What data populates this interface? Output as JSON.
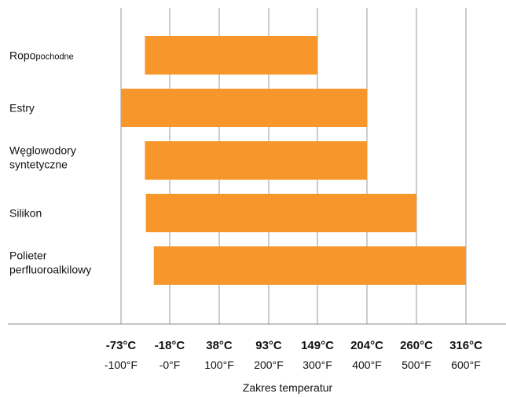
{
  "chart_data": {
    "type": "bar",
    "orientation": "horizontal",
    "xlabel": "Zakres temperatur",
    "bar_color": "#F7972B",
    "grid": true,
    "ticks": [
      {
        "value": -73,
        "celsius": "-73°C",
        "fahrenheit": "-100°F"
      },
      {
        "value": -18,
        "celsius": "-18°C",
        "fahrenheit": "-0°F"
      },
      {
        "value": 38,
        "celsius": "38°C",
        "fahrenheit": "100°F"
      },
      {
        "value": 93,
        "celsius": "93°C",
        "fahrenheit": "200°F"
      },
      {
        "value": 149,
        "celsius": "149°C",
        "fahrenheit": "300°F"
      },
      {
        "value": 204,
        "celsius": "204°C",
        "fahrenheit": "400°F"
      },
      {
        "value": 260,
        "celsius": "260°C",
        "fahrenheit": "500°F"
      },
      {
        "value": 316,
        "celsius": "316°C",
        "fahrenheit": "600°F"
      }
    ],
    "categories": [
      {
        "label_main": "Ropo",
        "label_small": "pochodne",
        "start": -46,
        "end": 149
      },
      {
        "label_main": "Estry",
        "start": -73,
        "end": 204
      },
      {
        "label_main": "Węglowodory",
        "label_line2": "syntetyczne",
        "start": -46,
        "end": 204
      },
      {
        "label_main": "Silikon",
        "start": -45,
        "end": 260
      },
      {
        "label_main": "Polieter",
        "label_line2": "perfluoroalkilowy",
        "start": -36,
        "end": 316
      }
    ]
  }
}
